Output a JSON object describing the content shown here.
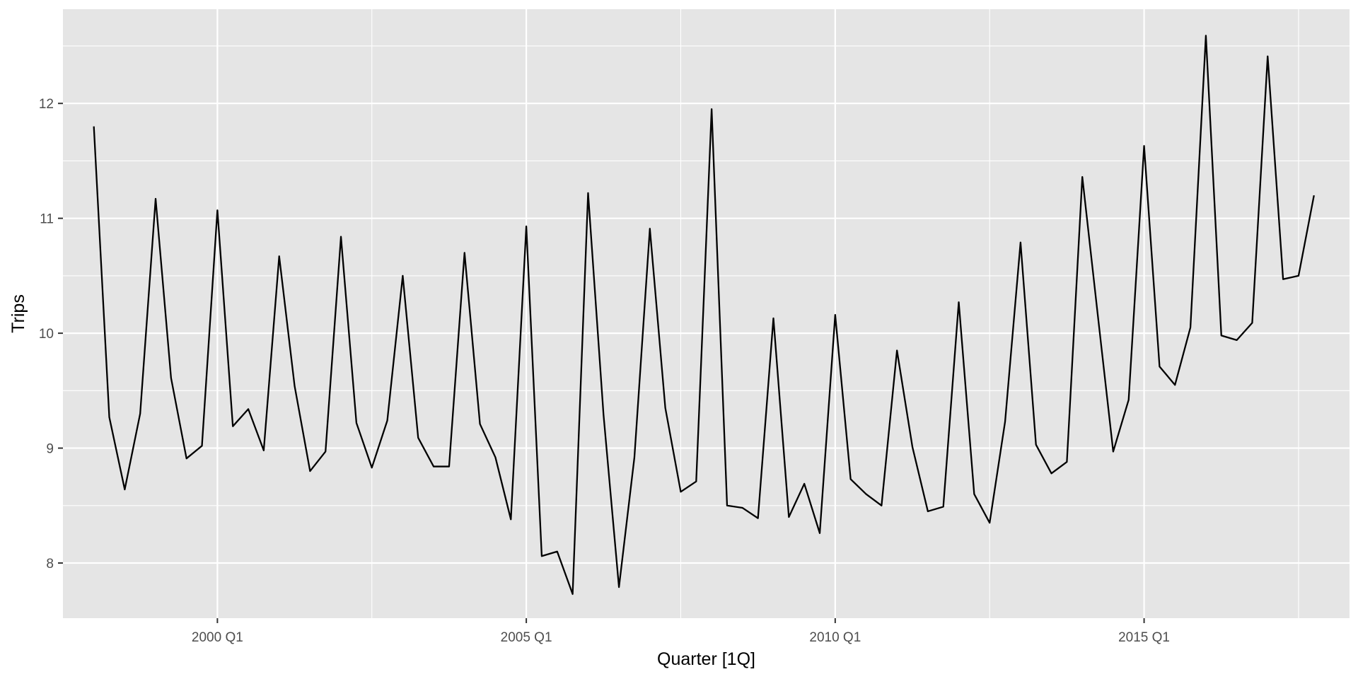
{
  "chart_data": {
    "type": "line",
    "title": "",
    "xlabel": "Quarter [1Q]",
    "ylabel": "Trips",
    "x_start": "1998 Q1",
    "x_ticks": [
      {
        "label": "2000 Q1",
        "quarter_index": 8
      },
      {
        "label": "2005 Q1",
        "quarter_index": 28
      },
      {
        "label": "2010 Q1",
        "quarter_index": 48
      },
      {
        "label": "2015 Q1",
        "quarter_index": 68
      }
    ],
    "y_ticks": [
      8,
      9,
      10,
      11,
      12
    ],
    "ylim": [
      7.52,
      12.82
    ],
    "grid": true,
    "series": [
      {
        "name": "",
        "color": "#000000",
        "values": [
          11.8,
          9.27,
          8.64,
          9.3,
          11.17,
          9.61,
          8.91,
          9.02,
          11.07,
          9.19,
          9.34,
          8.98,
          10.67,
          9.54,
          8.8,
          8.97,
          10.84,
          9.22,
          8.83,
          9.24,
          10.5,
          9.09,
          8.84,
          8.84,
          10.7,
          9.21,
          8.92,
          8.38,
          10.93,
          8.06,
          8.1,
          7.73,
          11.22,
          9.29,
          7.79,
          8.92,
          10.91,
          9.35,
          8.62,
          8.71,
          11.95,
          8.5,
          8.48,
          8.39,
          10.13,
          8.4,
          8.69,
          8.26,
          10.16,
          8.73,
          8.6,
          8.5,
          9.85,
          9.01,
          8.45,
          8.49,
          10.27,
          8.6,
          8.35,
          9.23,
          10.79,
          9.03,
          8.78,
          8.88,
          11.36,
          10.16,
          8.97,
          9.42,
          11.63,
          9.71,
          9.55,
          10.05,
          12.59,
          9.98,
          9.94,
          10.09,
          12.41,
          10.47,
          10.5,
          11.2
        ]
      }
    ]
  },
  "colors": {
    "panel_background": "#e5e5e5",
    "grid_major": "#ffffff",
    "line": "#000000",
    "tick_text": "#4d4d4d"
  }
}
